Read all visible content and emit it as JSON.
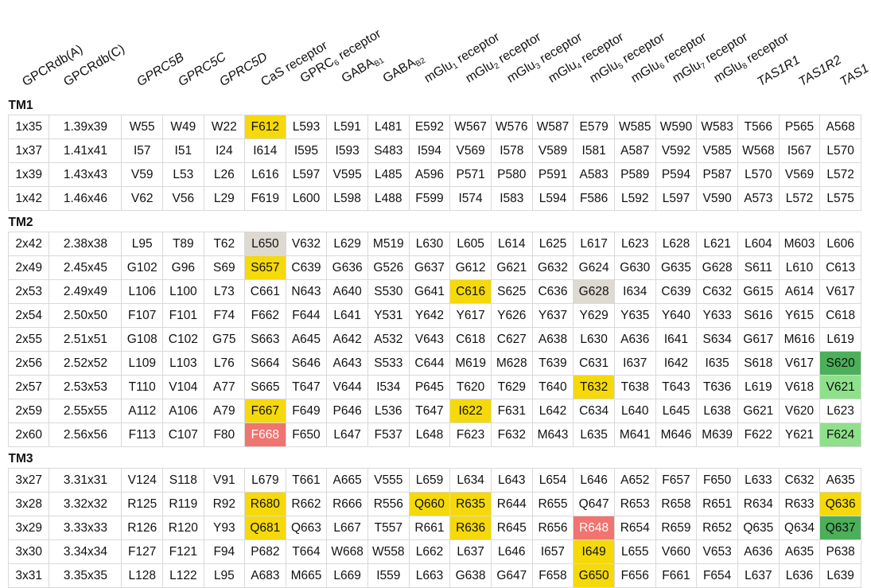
{
  "columns": [
    {
      "main": "GPCRdb(A)",
      "sub": "",
      "tail": "",
      "italic": false
    },
    {
      "main": "GPCRdb(C)",
      "sub": "",
      "tail": "",
      "italic": false
    },
    {
      "main": "GPRC5B",
      "sub": "",
      "tail": "",
      "italic": true
    },
    {
      "main": "GPRC5C",
      "sub": "",
      "tail": "",
      "italic": true
    },
    {
      "main": "GPRC5D",
      "sub": "",
      "tail": "",
      "italic": true
    },
    {
      "main": "CaS receptor",
      "sub": "",
      "tail": "",
      "italic": false
    },
    {
      "main": "GPRC",
      "sub": "6",
      "tail": " receptor",
      "italic": false
    },
    {
      "main": "GABA",
      "sub": "B1",
      "tail": "",
      "italic": false
    },
    {
      "main": "GABA",
      "sub": "B2",
      "tail": "",
      "italic": false
    },
    {
      "main": "mGlu",
      "sub": "1",
      "tail": " receptor",
      "italic": false
    },
    {
      "main": "mGlu",
      "sub": "2",
      "tail": " receptor",
      "italic": false
    },
    {
      "main": "mGlu",
      "sub": "3",
      "tail": " receptor",
      "italic": false
    },
    {
      "main": "mGlu",
      "sub": "4",
      "tail": " receptor",
      "italic": false
    },
    {
      "main": "mGlu",
      "sub": "5",
      "tail": " receptor",
      "italic": false
    },
    {
      "main": "mGlu",
      "sub": "6",
      "tail": " receptor",
      "italic": false
    },
    {
      "main": "mGlu",
      "sub": "7",
      "tail": " receptor",
      "italic": false
    },
    {
      "main": "mGlu",
      "sub": "8",
      "tail": " receptor",
      "italic": false
    },
    {
      "main": "TAS1R1",
      "sub": "",
      "tail": "",
      "italic": true
    },
    {
      "main": "TAS1R2",
      "sub": "",
      "tail": "",
      "italic": true
    },
    {
      "main": "TAS1",
      "sub": "",
      "tail": "",
      "italic": true
    }
  ],
  "highlight_colors": {
    "yellow": "#f5d90a",
    "grey": "#dedad2",
    "red": "#f07470",
    "dgreen": "#4caf5a",
    "lgreen": "#8fe08a"
  },
  "sections": [
    {
      "title": "TM1",
      "rows": [
        [
          "1x35",
          "1.39x39",
          "W55",
          "W49",
          "W22",
          "F612",
          "L593",
          "L591",
          "L481",
          "E592",
          "W567",
          "W576",
          "W587",
          "E579",
          "W585",
          "W590",
          "W583",
          "T566",
          "P565",
          "A568"
        ],
        [
          "1x37",
          "1.41x41",
          "I57",
          "I51",
          "I24",
          "I614",
          "I595",
          "I593",
          "S483",
          "I594",
          "V569",
          "I578",
          "V589",
          "I581",
          "A587",
          "V592",
          "V585",
          "W568",
          "I567",
          "L570"
        ],
        [
          "1x39",
          "1.43x43",
          "V59",
          "L53",
          "L26",
          "L616",
          "L597",
          "V595",
          "L485",
          "A596",
          "P571",
          "P580",
          "P591",
          "A583",
          "P589",
          "P594",
          "P587",
          "L570",
          "V569",
          "L572"
        ],
        [
          "1x42",
          "1.46x46",
          "V62",
          "V56",
          "L29",
          "F619",
          "L600",
          "L598",
          "L488",
          "F599",
          "I574",
          "I583",
          "L594",
          "F586",
          "L592",
          "L597",
          "V590",
          "A573",
          "L572",
          "L575"
        ]
      ]
    },
    {
      "title": "TM2",
      "rows": [
        [
          "2x42",
          "2.38x38",
          "L95",
          "T89",
          "T62",
          "L650",
          "V632",
          "L629",
          "M519",
          "L630",
          "L605",
          "L614",
          "L625",
          "L617",
          "L623",
          "L628",
          "L621",
          "L604",
          "M603",
          "L606"
        ],
        [
          "2x49",
          "2.45x45",
          "G102",
          "G96",
          "S69",
          "S657",
          "C639",
          "G636",
          "G526",
          "G637",
          "G612",
          "G621",
          "G632",
          "G624",
          "G630",
          "G635",
          "G628",
          "S611",
          "L610",
          "C613"
        ],
        [
          "2x53",
          "2.49x49",
          "L106",
          "L100",
          "L73",
          "C661",
          "N643",
          "A640",
          "S530",
          "G641",
          "C616",
          "S625",
          "C636",
          "G628",
          "I634",
          "C639",
          "C632",
          "G615",
          "A614",
          "V617"
        ],
        [
          "2x54",
          "2.50x50",
          "F107",
          "F101",
          "F74",
          "F662",
          "F644",
          "L641",
          "Y531",
          "Y642",
          "Y617",
          "Y626",
          "Y637",
          "Y629",
          "Y635",
          "Y640",
          "Y633",
          "S616",
          "Y615",
          "C618"
        ],
        [
          "2x55",
          "2.51x51",
          "G108",
          "C102",
          "G75",
          "S663",
          "A645",
          "A642",
          "A532",
          "V643",
          "C618",
          "C627",
          "A638",
          "L630",
          "A636",
          "I641",
          "S634",
          "G617",
          "M616",
          "L619"
        ],
        [
          "2x56",
          "2.52x52",
          "L109",
          "L103",
          "L76",
          "S664",
          "S646",
          "A643",
          "S533",
          "C644",
          "M619",
          "M628",
          "T639",
          "C631",
          "I637",
          "I642",
          "I635",
          "S618",
          "V617",
          "S620"
        ],
        [
          "2x57",
          "2.53x53",
          "T110",
          "V104",
          "A77",
          "S665",
          "T647",
          "V644",
          "I534",
          "P645",
          "T620",
          "T629",
          "T640",
          "T632",
          "T638",
          "T643",
          "T636",
          "L619",
          "V618",
          "V621"
        ],
        [
          "2x59",
          "2.55x55",
          "A112",
          "A106",
          "A79",
          "F667",
          "F649",
          "P646",
          "L536",
          "T647",
          "I622",
          "F631",
          "L642",
          "C634",
          "L640",
          "L645",
          "L638",
          "G621",
          "V620",
          "L623"
        ],
        [
          "2x60",
          "2.56x56",
          "F113",
          "C107",
          "F80",
          "F668",
          "F650",
          "L647",
          "F537",
          "L648",
          "F623",
          "F632",
          "M643",
          "L635",
          "M641",
          "M646",
          "M639",
          "F622",
          "Y621",
          "F624"
        ]
      ]
    },
    {
      "title": "TM3",
      "rows": [
        [
          "3x27",
          "3.31x31",
          "V124",
          "S118",
          "V91",
          "L679",
          "T661",
          "A665",
          "V555",
          "L659",
          "L634",
          "L643",
          "L654",
          "L646",
          "A652",
          "F657",
          "F650",
          "L633",
          "C632",
          "A635"
        ],
        [
          "3x28",
          "3.32x32",
          "R125",
          "R119",
          "R92",
          "R680",
          "R662",
          "R666",
          "R556",
          "Q660",
          "R635",
          "R644",
          "R655",
          "Q647",
          "R653",
          "R658",
          "R651",
          "R634",
          "R633",
          "Q636"
        ],
        [
          "3x29",
          "3.33x33",
          "R126",
          "R120",
          "Y93",
          "Q681",
          "Q663",
          "L667",
          "T557",
          "R661",
          "R636",
          "R645",
          "R656",
          "R648",
          "R654",
          "R659",
          "R652",
          "Q635",
          "Q634",
          "Q637"
        ],
        [
          "3x30",
          "3.34x34",
          "F127",
          "F121",
          "F94",
          "P682",
          "T664",
          "W668",
          "W558",
          "L662",
          "L637",
          "L646",
          "I657",
          "I649",
          "L655",
          "V660",
          "V653",
          "A636",
          "A635",
          "P638"
        ],
        [
          "3x31",
          "3.35x35",
          "L128",
          "L122",
          "L95",
          "A683",
          "M665",
          "L669",
          "I559",
          "L663",
          "G638",
          "G647",
          "F658",
          "G650",
          "F656",
          "F661",
          "F654",
          "L637",
          "L636",
          "L639"
        ]
      ]
    }
  ],
  "highlights": [
    {
      "section": 0,
      "row": 0,
      "col": 5,
      "color": "yellow"
    },
    {
      "section": 1,
      "row": 0,
      "col": 5,
      "color": "grey"
    },
    {
      "section": 1,
      "row": 1,
      "col": 5,
      "color": "yellow"
    },
    {
      "section": 1,
      "row": 2,
      "col": 10,
      "color": "yellow"
    },
    {
      "section": 1,
      "row": 2,
      "col": 13,
      "color": "grey"
    },
    {
      "section": 1,
      "row": 5,
      "col": 19,
      "color": "dgreen"
    },
    {
      "section": 1,
      "row": 6,
      "col": 13,
      "color": "yellow"
    },
    {
      "section": 1,
      "row": 6,
      "col": 19,
      "color": "lgreen"
    },
    {
      "section": 1,
      "row": 7,
      "col": 5,
      "color": "yellow"
    },
    {
      "section": 1,
      "row": 7,
      "col": 10,
      "color": "yellow"
    },
    {
      "section": 1,
      "row": 8,
      "col": 5,
      "color": "red"
    },
    {
      "section": 1,
      "row": 8,
      "col": 19,
      "color": "lgreen"
    },
    {
      "section": 2,
      "row": 1,
      "col": 5,
      "color": "yellow"
    },
    {
      "section": 2,
      "row": 1,
      "col": 9,
      "color": "yellow"
    },
    {
      "section": 2,
      "row": 1,
      "col": 10,
      "color": "yellow"
    },
    {
      "section": 2,
      "row": 1,
      "col": 19,
      "color": "yellow"
    },
    {
      "section": 2,
      "row": 2,
      "col": 5,
      "color": "yellow"
    },
    {
      "section": 2,
      "row": 2,
      "col": 10,
      "color": "yellow"
    },
    {
      "section": 2,
      "row": 2,
      "col": 13,
      "color": "red"
    },
    {
      "section": 2,
      "row": 2,
      "col": 19,
      "color": "dgreen"
    },
    {
      "section": 2,
      "row": 3,
      "col": 13,
      "color": "yellow"
    },
    {
      "section": 2,
      "row": 4,
      "col": 13,
      "color": "yellow"
    }
  ]
}
